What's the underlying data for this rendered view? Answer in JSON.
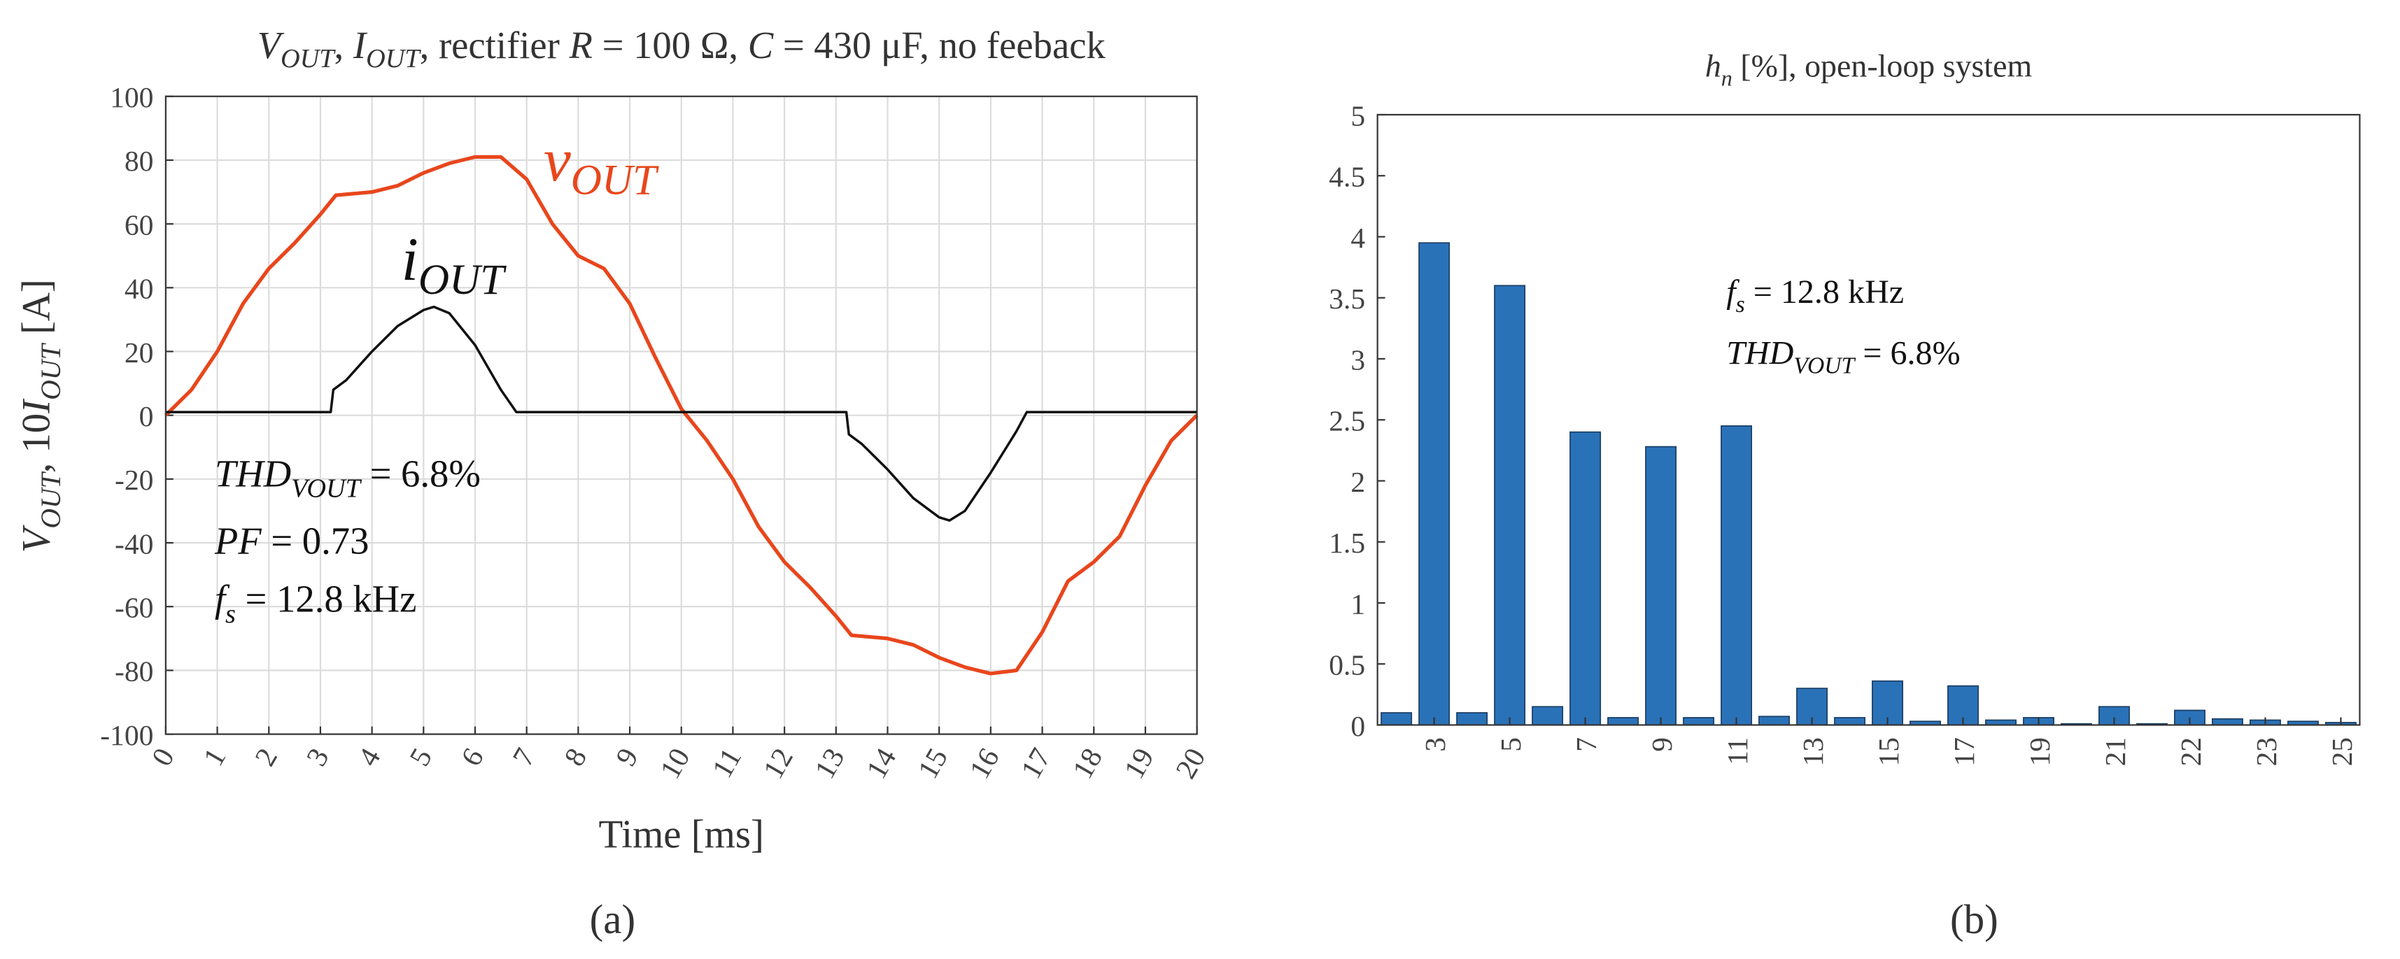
{
  "chart_data": [
    {
      "type": "line",
      "title": [
        "V",
        "OUT",
        ", ",
        "I",
        "OUT",
        ", rectifier ",
        "R",
        " = 100 Ω, ",
        "C",
        " = 430 μF, no feeback"
      ],
      "x_label": "Time [ms]",
      "y_label": [
        "V",
        "OUT",
        ", 10",
        "I",
        "OUT",
        " [A]"
      ],
      "panel_label": "(a)",
      "xlim": [
        0,
        20
      ],
      "xticks": [
        0,
        1,
        2,
        3,
        4,
        5,
        6,
        7,
        8,
        9,
        10,
        11,
        12,
        13,
        14,
        15,
        16,
        17,
        18,
        19,
        20
      ],
      "ylim": [
        -100,
        100
      ],
      "yticks": [
        -100,
        -80,
        -60,
        -40,
        -20,
        0,
        20,
        40,
        60,
        80,
        100
      ],
      "grid": true,
      "series": [
        {
          "name": [
            "v",
            "OUT"
          ],
          "color": "#e8461c",
          "x": [
            0,
            0.5,
            1,
            1.5,
            2,
            2.5,
            3,
            3.3,
            4,
            4.5,
            5,
            5.5,
            6,
            6.5,
            7,
            7.5,
            8,
            8.5,
            9,
            9.5,
            10,
            10.5,
            11,
            11.5,
            12,
            12.5,
            13,
            13.3,
            14,
            14.5,
            15,
            15.5,
            16,
            16.5,
            17,
            17.5,
            18,
            18.5,
            19,
            19.5,
            20
          ],
          "values": [
            0,
            8,
            20,
            35,
            46,
            54,
            63,
            69,
            70,
            72,
            76,
            79,
            81,
            81,
            74,
            60,
            50,
            46,
            35,
            18,
            2,
            -8,
            -20,
            -35,
            -46,
            -54,
            -63,
            -69,
            -70,
            -72,
            -76,
            -79,
            -81,
            -80,
            -68,
            -52,
            -46,
            -38,
            -22,
            -8,
            0
          ]
        },
        {
          "name": [
            "i",
            "OUT"
          ],
          "color": "#111111",
          "x": [
            0,
            3.2,
            3.25,
            3.5,
            4,
            4.5,
            5,
            5.2,
            5.5,
            6,
            6.5,
            6.8,
            13.2,
            13.25,
            13.5,
            14,
            14.5,
            15,
            15.2,
            15.5,
            16,
            16.5,
            16.7,
            20
          ],
          "values": [
            1,
            1,
            8,
            11,
            20,
            28,
            33,
            34,
            32,
            22,
            8,
            1,
            1,
            -6,
            -9,
            -17,
            -26,
            -32,
            -33,
            -30,
            -18,
            -5,
            1,
            1
          ]
        }
      ],
      "annotations": [
        [
          "THD",
          "VOUT",
          " = 6.8%"
        ],
        [
          "PF",
          " = 0.73"
        ],
        [
          "f",
          "s",
          " = 12.8 kHz"
        ]
      ]
    },
    {
      "type": "bar",
      "title": [
        "h",
        "n",
        " [%], open-loop system"
      ],
      "panel_label": "(b)",
      "categories": [
        null,
        "3",
        null,
        "5",
        null,
        "7",
        null,
        "9",
        null,
        "11",
        null,
        "13",
        null,
        "15",
        null,
        "17",
        null,
        "19",
        null,
        "21",
        null,
        "22",
        null,
        "23",
        null,
        "25"
      ],
      "values": [
        0.1,
        3.95,
        0.1,
        3.6,
        0.15,
        2.4,
        0.06,
        2.28,
        0.06,
        2.45,
        0.07,
        0.3,
        0.06,
        0.36,
        0.03,
        0.32,
        0.04,
        0.06,
        0.01,
        0.15,
        0.01,
        0.12,
        0.05,
        0.04,
        0.03,
        0.02
      ],
      "color": "#2a72b8",
      "ylim": [
        0,
        5
      ],
      "yticks": [
        0,
        0.5,
        1,
        1.5,
        2,
        2.5,
        3,
        3.5,
        4,
        4.5,
        5
      ],
      "grid": false,
      "annotations": [
        [
          "f",
          "s",
          " = 12.8 kHz"
        ],
        [
          "THD",
          "VOUT",
          " = 6.8%"
        ]
      ]
    }
  ]
}
